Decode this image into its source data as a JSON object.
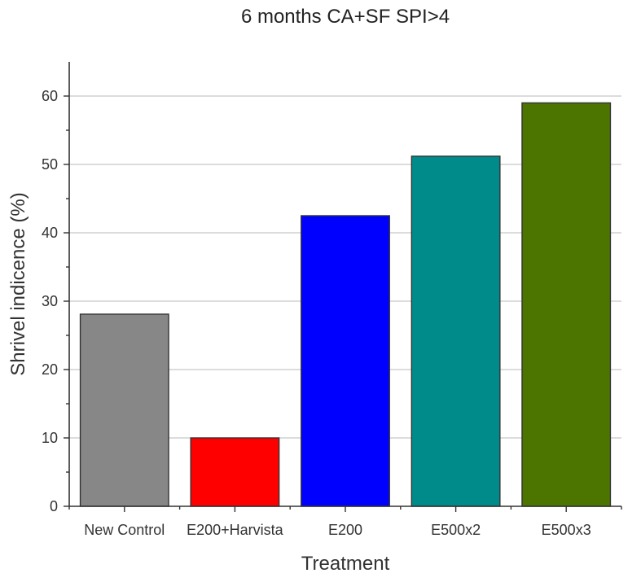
{
  "chart_data": {
    "type": "bar",
    "title": "6 months CA+SF SPI>4",
    "xlabel": "Treatment",
    "ylabel": "Shrivel indicence (%)",
    "categories": [
      "New Control",
      "E200+Harvista",
      "E200",
      "E500x2",
      "E500x3"
    ],
    "values": [
      28.1,
      10.0,
      42.5,
      51.2,
      59.0
    ],
    "colors": [
      "#878787",
      "#ff0000",
      "#0000ff",
      "#008b8b",
      "#4c7500"
    ],
    "ylim": [
      0,
      65
    ],
    "yticks": [
      0,
      10,
      20,
      30,
      40,
      50,
      60
    ],
    "grid": true
  }
}
